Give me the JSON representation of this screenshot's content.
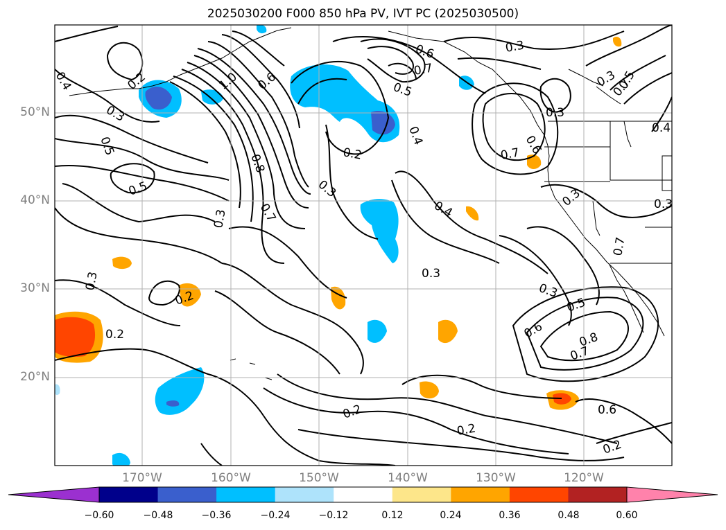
{
  "title": "2025030200 F000 850 hPa PV, IVT PC (2025030500)",
  "lat_labels": [
    "50°N",
    "40°N",
    "30°N",
    "20°N"
  ],
  "lon_labels": [
    "170°W",
    "160°W",
    "150°W",
    "140°W",
    "130°W",
    "120°W"
  ],
  "contour_labels": [
    "0.4",
    "0.2",
    "0.3",
    "0.5",
    "0.5",
    "1.0",
    "0.6",
    "0.8",
    "0.7",
    "0.3",
    "0.6",
    "0.7",
    "0.5",
    "0.4",
    "0.2",
    "0.3",
    "0.4",
    "0.3",
    "0.3",
    "0.7",
    "0.6",
    "0.3",
    "0.3",
    "0.5",
    "0.7",
    "0.4",
    "0.3",
    "0.3",
    "0.7",
    "0.3",
    "0.5",
    "0.6",
    "0.8",
    "0.7",
    "0.2",
    "0.3",
    "0.2",
    "0.2",
    "0.2",
    "0.6",
    "0.2"
  ],
  "colorbar": {
    "ticks": [
      "−0.60",
      "−0.48",
      "−0.36",
      "−0.24",
      "−0.12",
      "0.12",
      "0.24",
      "0.36",
      "0.48",
      "0.60"
    ],
    "colors": [
      "#9b30d0",
      "#00008b",
      "#3a5fcd",
      "#00bfff",
      "#aee3fb",
      "#ffffff",
      "#fde68a",
      "#ffa500",
      "#ff4500",
      "#b22222",
      "#ff82ab"
    ]
  },
  "colors": {
    "land_outline": "#000000",
    "grid": "#b0b0b0",
    "contour": "#000000",
    "axis_label": "#7f7f7f"
  }
}
